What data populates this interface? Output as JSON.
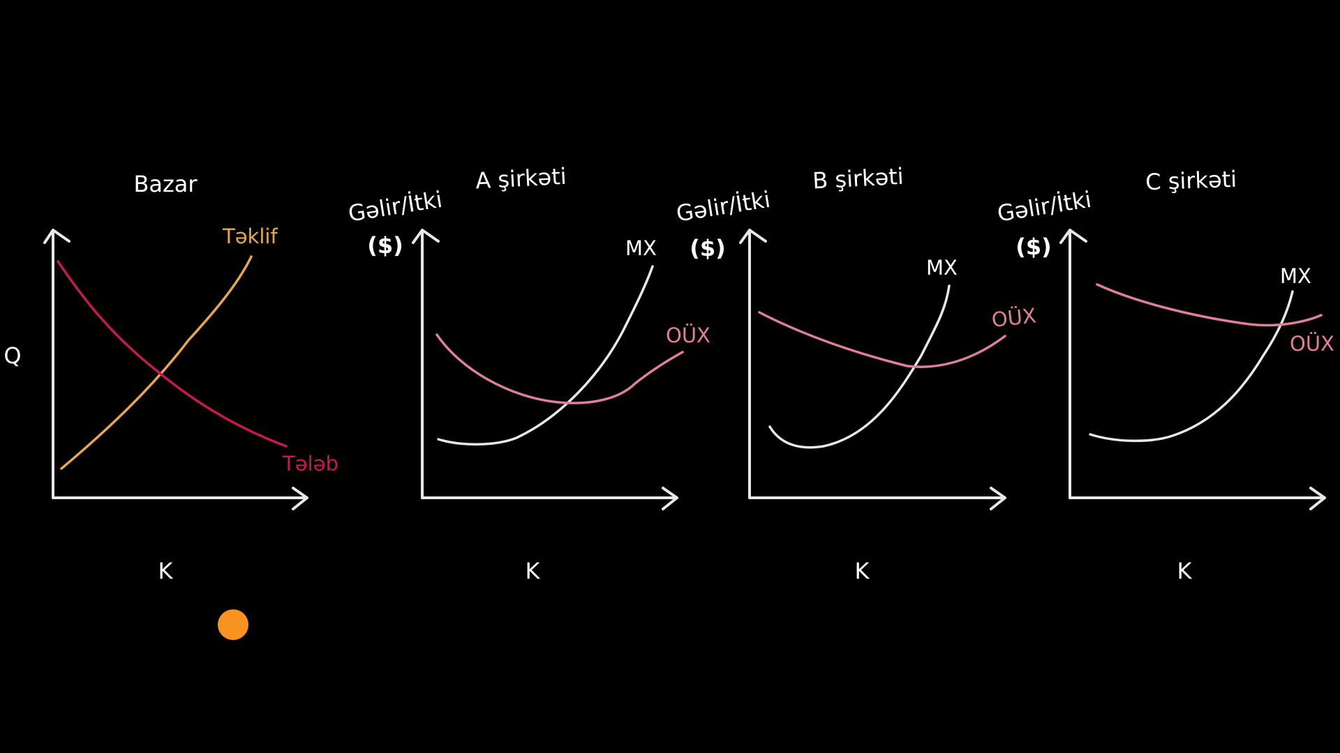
{
  "colors": {
    "background": "#000000",
    "axes": "#e8e8e8",
    "text": "#ffffff",
    "supply": "#e8a84a",
    "demand": "#c8184f",
    "mc": "#e8e8ea",
    "atc": "#e07f9c",
    "cursor_dot": "#f7931e"
  },
  "market": {
    "title": "Bazar",
    "y_label": "Q",
    "x_label": "K",
    "supply_label": "Təklif",
    "demand_label": "Tələb"
  },
  "firms": [
    {
      "title": "A şirkəti",
      "y_label_top": "Gəlir/İtki",
      "y_label_unit": "($)",
      "x_label": "K",
      "mc_label": "MX",
      "atc_label": "OÜX"
    },
    {
      "title": "B şirkəti",
      "y_label_top": "Gəlir/İtki",
      "y_label_unit": "($)",
      "x_label": "K",
      "mc_label": "MX",
      "atc_label": "OÜX"
    },
    {
      "title": "C şirkəti",
      "y_label_top": "Gəlir/İtki",
      "y_label_unit": "($)",
      "x_label": "K",
      "mc_label": "MX",
      "atc_label": "OÜX"
    }
  ]
}
